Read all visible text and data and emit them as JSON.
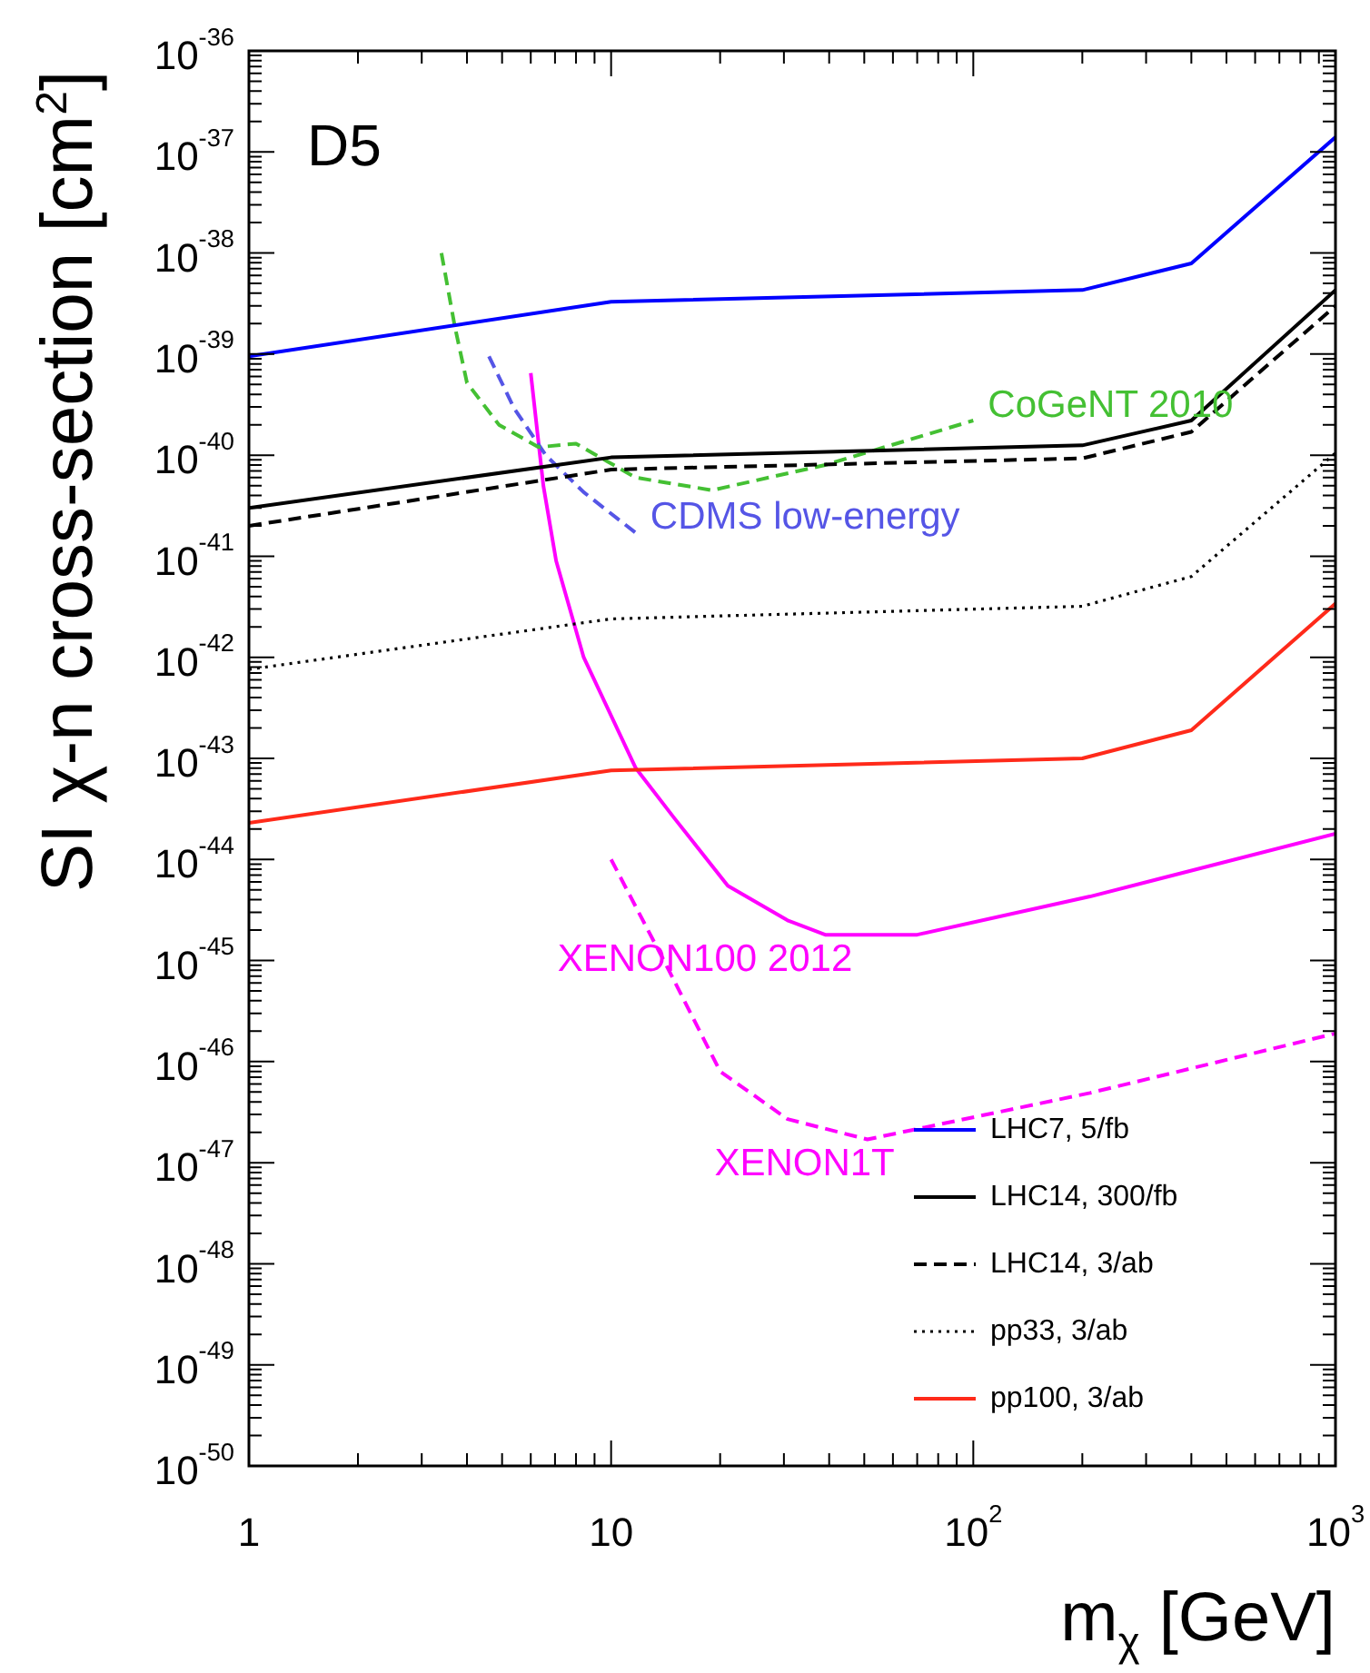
{
  "chart_data": {
    "type": "line",
    "xlabel": "m$_{χ}$ [GeV]",
    "ylabel": "SI χ-n cross-section [cm$^{2}$]",
    "log": "xy",
    "legend": "bottom right",
    "marker": "none",
    "annotations": [
      "D5"
    ],
    "xlim": [
      1,
      1000
    ],
    "xticks": [
      1,
      10,
      {
        "value": 100,
        "label": "10$^{2}$"
      },
      {
        "value": 1000,
        "label": "10$^{3}$"
      }
    ],
    "ylim": [
      1e-50,
      1e-36
    ],
    "yticks": [
      {
        "value": 1e-50,
        "label": "10$^{-50}$"
      },
      {
        "value": 1e-49,
        "label": "10$^{-49}$"
      },
      {
        "value": 1e-48,
        "label": "10$^{-48}$"
      },
      {
        "value": 1e-47,
        "label": "10$^{-47}$"
      },
      {
        "value": 1e-46,
        "label": "10$^{-46}$"
      },
      {
        "value": 1e-45,
        "label": "10$^{-45}$"
      },
      {
        "value": 1e-44,
        "label": "10$^{-44}$"
      },
      {
        "value": 1e-43,
        "label": "10$^{-43}$"
      },
      {
        "value": 1e-42,
        "label": "10$^{-42}$"
      },
      {
        "value": 1e-41,
        "label": "10$^{-41}$"
      },
      {
        "value": 1e-40,
        "label": "10$^{-40}$"
      },
      {
        "value": 1e-39,
        "label": "10$^{-39}$"
      },
      {
        "value": 1e-38,
        "label": "10$^{-38}$"
      },
      {
        "value": 1e-37,
        "label": "10$^{-37}$"
      },
      {
        "value": 1e-36,
        "label": "10$^{-36}$"
      }
    ],
    "series": [
      {
        "name": "LHC7, 5/fb",
        "color": "#0000ff",
        "line_style": "solid",
        "x": [
          1,
          10,
          200,
          400,
          1000
        ],
        "values": [
          9.5e-40,
          3.3e-39,
          4.3e-39,
          7.9e-39,
          1.4e-37
        ]
      },
      {
        "name": "LHC14, 300/fb",
        "color": "#000000",
        "line_style": "solid",
        "x": [
          1,
          10,
          200,
          400,
          1000
        ],
        "values": [
          3e-41,
          9.5e-41,
          1.25e-40,
          2.2e-40,
          4.3e-39
        ]
      },
      {
        "name": "LHC14, 3/ab",
        "color": "#000000",
        "line_style": "dashed",
        "x": [
          1,
          10,
          200,
          400,
          1000
        ],
        "values": [
          2e-41,
          7.2e-41,
          9.3e-41,
          1.7e-40,
          3e-39
        ]
      },
      {
        "name": "pp33, 3/ab",
        "color": "#000000",
        "line_style": "dotted",
        "x": [
          1,
          10,
          200,
          400,
          1000
        ],
        "values": [
          7.6e-43,
          2.4e-42,
          3.2e-42,
          6.3e-42,
          1.05e-40
        ]
      },
      {
        "name": "pp100, 3/ab",
        "color": "#ff2a1a",
        "line_style": "solid",
        "x": [
          1,
          10,
          200,
          400,
          1000
        ],
        "values": [
          2.3e-44,
          7.6e-44,
          1e-43,
          1.9e-43,
          3.4e-42
        ]
      },
      {
        "name": "CoGeNT 2010",
        "color": "#44c033",
        "line_style": "dashed",
        "x": [
          3.4,
          3.7,
          4,
          4.9,
          6.3,
          8,
          11.7,
          19,
          39,
          100
        ],
        "values": [
          1e-38,
          1.9e-39,
          5.2e-40,
          2e-40,
          1.2e-40,
          1.3e-40,
          6e-41,
          4.5e-41,
          8e-41,
          2.2e-40
        ]
      },
      {
        "name": "CDMS low-energy",
        "color": "#5555e6",
        "line_style": "dashed",
        "x": [
          4.6,
          5.4,
          6.6,
          8.4,
          11.7
        ],
        "values": [
          9.5e-40,
          2.9e-40,
          1e-40,
          4.3e-41,
          1.7e-41
        ]
      },
      {
        "name": "XENON100 2012",
        "color": "#ff00ff",
        "line_style": "solid",
        "x": [
          6,
          6.5,
          7.05,
          8.4,
          11.7,
          14.9,
          21,
          30.7,
          39,
          70,
          210,
          1000
        ],
        "values": [
          6.5e-40,
          5e-41,
          9e-42,
          1e-42,
          8e-44,
          2.6e-44,
          5.5e-45,
          2.5e-45,
          1.8e-45,
          1.8e-45,
          4.3e-45,
          1.8e-44
        ]
      },
      {
        "name": "XENON1T",
        "color": "#ff00ff",
        "line_style": "dashed",
        "x": [
          10,
          14.2,
          20,
          30.7,
          51,
          210,
          1000
        ],
        "values": [
          1e-44,
          9e-46,
          8e-47,
          2.7e-47,
          1.7e-47,
          4.9e-47,
          1.9e-46
        ]
      }
    ]
  }
}
